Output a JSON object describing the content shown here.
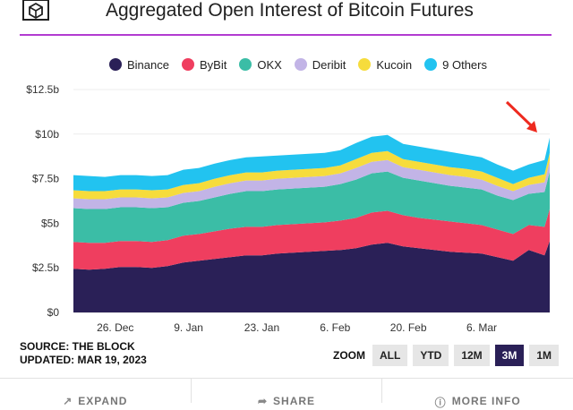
{
  "title": "Aggregated Open Interest of Bitcoin Futures",
  "legend": [
    {
      "label": "Binance",
      "color": "#2a2057"
    },
    {
      "label": "ByBit",
      "color": "#ef3e5f"
    },
    {
      "label": "OKX",
      "color": "#3bbda6"
    },
    {
      "label": "Deribit",
      "color": "#c2b4e6"
    },
    {
      "label": "Kucoin",
      "color": "#f6dc3c"
    },
    {
      "label": "9 Others",
      "color": "#22c3f0"
    }
  ],
  "footer": {
    "source": "SOURCE: THE BLOCK",
    "updated": "UPDATED: MAR 19, 2023"
  },
  "zoom": {
    "label": "ZOOM",
    "buttons": [
      "ALL",
      "YTD",
      "12M",
      "3M",
      "1M"
    ],
    "active": "3M"
  },
  "actions": {
    "expand": "EXPAND",
    "share": "SHARE",
    "more_info": "MORE INFO"
  },
  "chart_data": {
    "type": "area",
    "stacked": true,
    "title": "Aggregated Open Interest of Bitcoin Futures",
    "x_start": "2022-12-18",
    "x": [
      "2022-12-18",
      "2022-12-21",
      "2022-12-24",
      "2022-12-27",
      "2022-12-30",
      "2023-01-02",
      "2023-01-05",
      "2023-01-08",
      "2023-01-11",
      "2023-01-14",
      "2023-01-17",
      "2023-01-20",
      "2023-01-23",
      "2023-01-26",
      "2023-01-29",
      "2023-02-01",
      "2023-02-04",
      "2023-02-07",
      "2023-02-10",
      "2023-02-13",
      "2023-02-16",
      "2023-02-19",
      "2023-02-22",
      "2023-02-25",
      "2023-02-28",
      "2023-03-03",
      "2023-03-06",
      "2023-03-09",
      "2023-03-12",
      "2023-03-15",
      "2023-03-18",
      "2023-03-19"
    ],
    "series": [
      {
        "name": "Binance",
        "color": "#2a2057",
        "values": [
          2.45,
          2.4,
          2.45,
          2.55,
          2.55,
          2.5,
          2.6,
          2.8,
          2.9,
          3.0,
          3.1,
          3.2,
          3.2,
          3.3,
          3.35,
          3.4,
          3.45,
          3.5,
          3.6,
          3.8,
          3.9,
          3.7,
          3.6,
          3.5,
          3.4,
          3.35,
          3.3,
          3.1,
          2.9,
          3.5,
          3.2,
          4.0
        ]
      },
      {
        "name": "ByBit",
        "color": "#ef3e5f",
        "values": [
          1.5,
          1.5,
          1.45,
          1.45,
          1.45,
          1.45,
          1.45,
          1.5,
          1.5,
          1.55,
          1.6,
          1.6,
          1.6,
          1.6,
          1.6,
          1.6,
          1.6,
          1.65,
          1.7,
          1.8,
          1.8,
          1.75,
          1.7,
          1.7,
          1.7,
          1.65,
          1.6,
          1.55,
          1.5,
          1.4,
          1.6,
          1.8
        ]
      },
      {
        "name": "OKX",
        "color": "#3bbda6",
        "values": [
          1.9,
          1.9,
          1.9,
          1.9,
          1.9,
          1.9,
          1.85,
          1.85,
          1.85,
          1.9,
          1.95,
          2.0,
          2.0,
          2.0,
          2.0,
          2.0,
          2.0,
          2.05,
          2.15,
          2.2,
          2.2,
          2.1,
          2.1,
          2.05,
          2.0,
          2.0,
          2.0,
          1.9,
          1.9,
          1.75,
          1.95,
          2.1
        ]
      },
      {
        "name": "Deribit",
        "color": "#c2b4e6",
        "values": [
          0.55,
          0.55,
          0.55,
          0.55,
          0.55,
          0.55,
          0.55,
          0.55,
          0.55,
          0.6,
          0.6,
          0.6,
          0.6,
          0.6,
          0.6,
          0.6,
          0.6,
          0.6,
          0.65,
          0.65,
          0.65,
          0.6,
          0.6,
          0.6,
          0.6,
          0.6,
          0.55,
          0.55,
          0.5,
          0.5,
          0.55,
          0.6
        ]
      },
      {
        "name": "Kucoin",
        "color": "#f6dc3c",
        "values": [
          0.45,
          0.45,
          0.45,
          0.45,
          0.45,
          0.45,
          0.45,
          0.45,
          0.45,
          0.45,
          0.45,
          0.45,
          0.45,
          0.45,
          0.45,
          0.45,
          0.45,
          0.45,
          0.5,
          0.5,
          0.5,
          0.45,
          0.45,
          0.45,
          0.45,
          0.45,
          0.45,
          0.45,
          0.4,
          0.4,
          0.45,
          0.45
        ]
      },
      {
        "name": "9 Others",
        "color": "#22c3f0",
        "values": [
          0.85,
          0.85,
          0.8,
          0.8,
          0.8,
          0.8,
          0.8,
          0.85,
          0.85,
          0.85,
          0.85,
          0.85,
          0.9,
          0.85,
          0.85,
          0.85,
          0.85,
          0.85,
          0.9,
          0.9,
          0.9,
          0.85,
          0.85,
          0.85,
          0.85,
          0.8,
          0.8,
          0.75,
          0.75,
          0.75,
          0.8,
          0.85
        ]
      }
    ],
    "y_ticks": [
      "$0",
      "$2.5b",
      "$5b",
      "$7.5b",
      "$10b",
      "$12.5b"
    ],
    "ylim": [
      0,
      12.5
    ],
    "x_ticks": [
      {
        "label": "26. Dec",
        "date": "2022-12-26"
      },
      {
        "label": "9. Jan",
        "date": "2023-01-09"
      },
      {
        "label": "23. Jan",
        "date": "2023-01-23"
      },
      {
        "label": "6. Feb",
        "date": "2023-02-06"
      },
      {
        "label": "20. Feb",
        "date": "2023-02-20"
      },
      {
        "label": "6. Mar",
        "date": "2023-03-06"
      }
    ],
    "grid": true,
    "legend_position": "top"
  }
}
